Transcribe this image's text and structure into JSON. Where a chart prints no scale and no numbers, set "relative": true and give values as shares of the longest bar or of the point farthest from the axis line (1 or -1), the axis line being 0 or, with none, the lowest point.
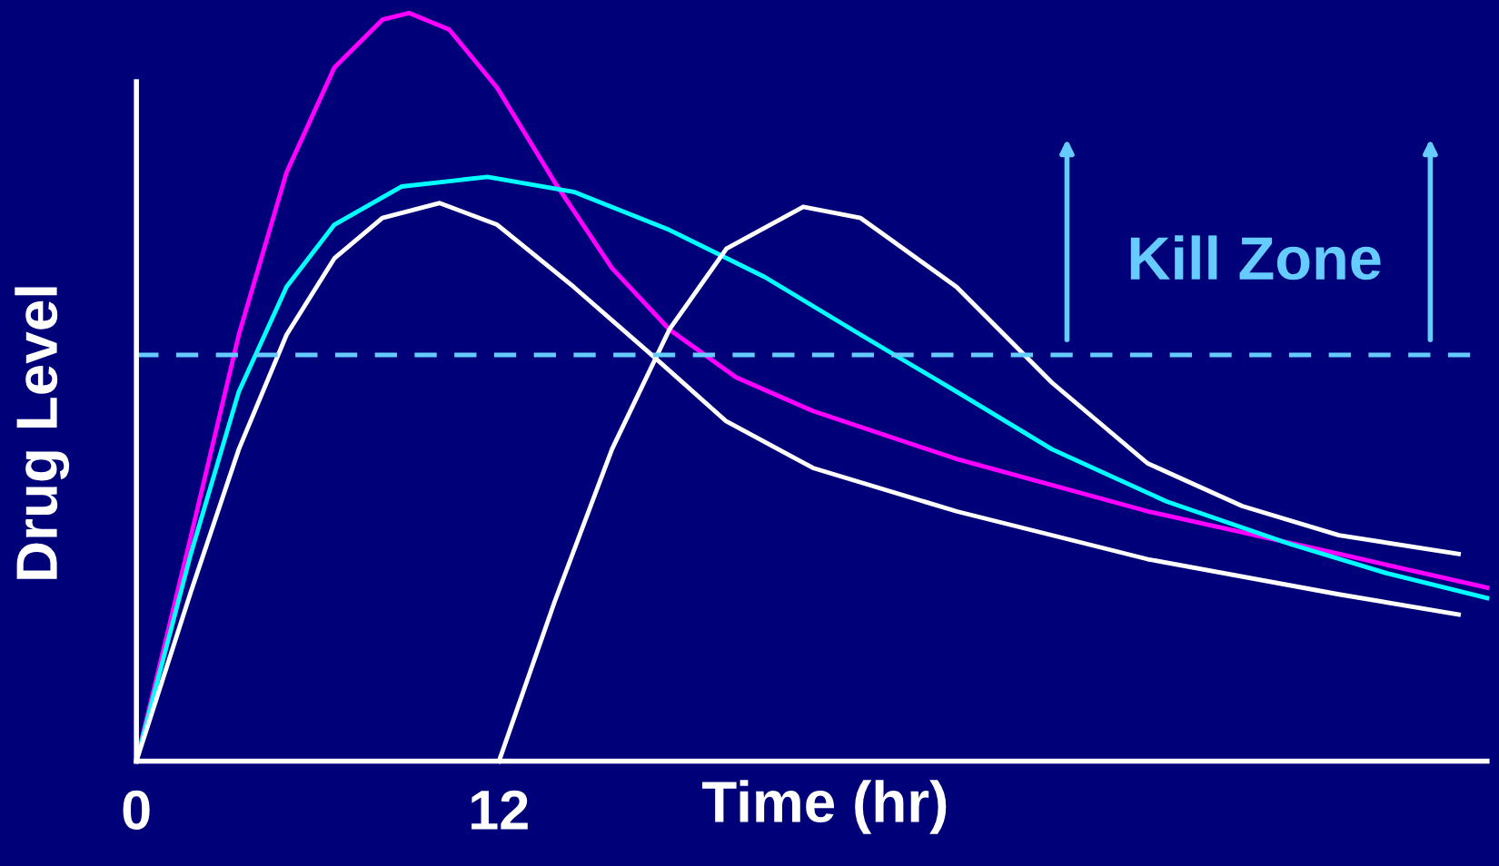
{
  "chart_data": {
    "type": "line",
    "relative": true,
    "xlabel": "Time (hr)",
    "ylabel": "Drug Level",
    "xlim": [
      0,
      44.7
    ],
    "xticks": [
      0,
      12
    ],
    "grid": false,
    "marker": "none",
    "line_style": "solid",
    "annotations": [
      "Kill Zone"
    ],
    "ref_lines": [
      {
        "axis": "y",
        "value": 0.543,
        "color": "#66ccff",
        "line_style": "dashed"
      }
    ],
    "series": [
      {
        "color": "#ff00ff",
        "x": [
          0,
          1.8,
          3.39,
          4.97,
          6.55,
          8.14,
          9.02,
          10.35,
          11.94,
          13.84,
          15.74,
          17.64,
          19.85,
          22.39,
          27.14,
          33.47,
          39.8,
          44.7
        ],
        "values": [
          0,
          0.3,
          0.57,
          0.787,
          0.927,
          0.991,
          1.0,
          0.978,
          0.9,
          0.774,
          0.659,
          0.577,
          0.513,
          0.468,
          0.404,
          0.334,
          0.277,
          0.232
        ]
      },
      {
        "color": "#00ffff",
        "x": [
          0,
          1.8,
          3.39,
          4.97,
          6.55,
          8.77,
          11.62,
          14.47,
          17.64,
          20.8,
          23.97,
          27.14,
          30.3,
          34.1,
          38.2,
          41.4,
          44.7
        ],
        "values": [
          0,
          0.277,
          0.494,
          0.634,
          0.717,
          0.768,
          0.781,
          0.761,
          0.71,
          0.647,
          0.57,
          0.494,
          0.417,
          0.347,
          0.29,
          0.251,
          0.218
        ]
      },
      {
        "color": "#ffffff",
        "x": [
          0,
          1.8,
          3.39,
          4.97,
          6.55,
          8.14,
          10.04,
          11.94,
          14.47,
          17.0,
          19.5,
          22.39,
          27.14,
          33.47,
          39.8,
          43.76
        ],
        "values": [
          0,
          0.226,
          0.417,
          0.57,
          0.672,
          0.726,
          0.746,
          0.717,
          0.634,
          0.545,
          0.455,
          0.392,
          0.334,
          0.27,
          0.223,
          0.196
        ]
      },
      {
        "color": "#ffffff",
        "x": [
          12,
          13.84,
          15.74,
          17.64,
          19.53,
          22.07,
          23.97,
          27.14,
          30.3,
          33.47,
          36.6,
          39.8,
          43.76
        ],
        "values": [
          0,
          0.213,
          0.417,
          0.577,
          0.685,
          0.741,
          0.726,
          0.634,
          0.506,
          0.398,
          0.341,
          0.302,
          0.277
        ]
      }
    ]
  }
}
